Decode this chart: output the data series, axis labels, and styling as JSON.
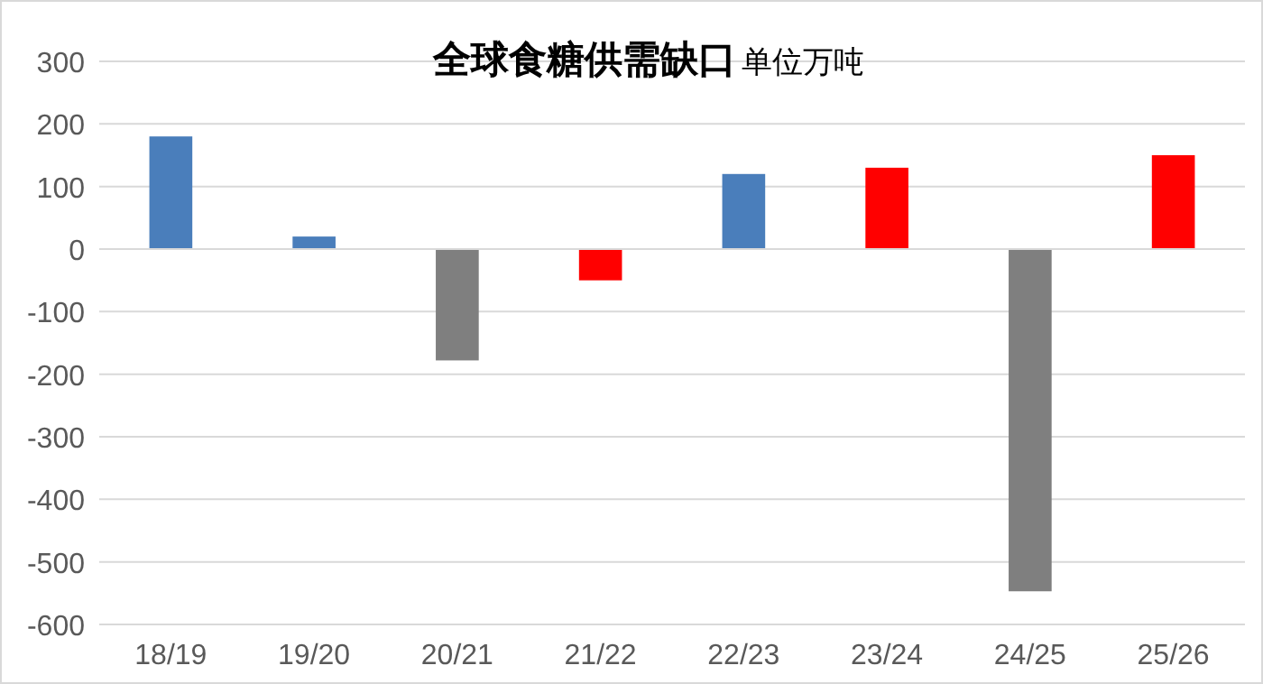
{
  "chart_data": {
    "type": "bar",
    "title": "全球食糖供需缺口",
    "subtitle": "单位万吨",
    "categories": [
      "18/19",
      "19/20",
      "20/21",
      "21/22",
      "22/23",
      "23/24",
      "24/25",
      "25/26"
    ],
    "values": [
      180,
      20,
      -178,
      -50,
      120,
      130,
      -547,
      150
    ],
    "colors": [
      "#4a7ebb",
      "#4a7ebb",
      "#7f7f7f",
      "#ff0000",
      "#4a7ebb",
      "#ff0000",
      "#7f7f7f",
      "#ff0000"
    ],
    "ylim": [
      -600,
      300
    ],
    "yticks": [
      -600,
      -500,
      -400,
      -300,
      -200,
      -100,
      0,
      100,
      200,
      300
    ],
    "grid": "y"
  }
}
